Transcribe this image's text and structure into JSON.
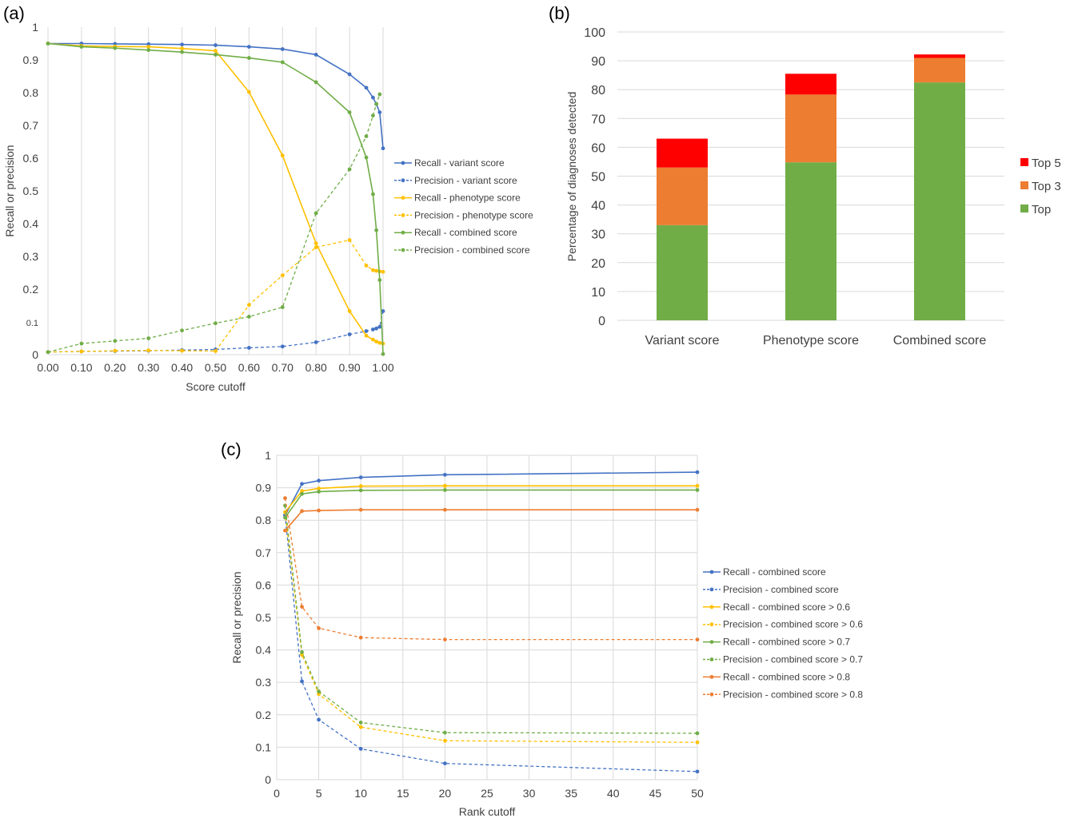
{
  "chart_data": [
    {
      "panel": "(a)",
      "type": "line",
      "xlabel": "Score cutoff",
      "ylabel": "Recall or precision",
      "xlim": [
        0,
        1
      ],
      "ylim": [
        0,
        1
      ],
      "x_ticks": [
        "0.00",
        "0.10",
        "0.20",
        "0.30",
        "0.40",
        "0.50",
        "0.60",
        "0.70",
        "0.80",
        "0.90",
        "1.00"
      ],
      "y_ticks": [
        "0",
        "0.1",
        "0.2",
        "0.3",
        "0.4",
        "0.5",
        "0.6",
        "0.7",
        "0.8",
        "0.9",
        "1"
      ],
      "legend_position": "right",
      "grid": "vertical",
      "series": [
        {
          "name": "Recall - variant score",
          "color": "#4472C4",
          "dashed": false,
          "x": [
            0,
            0.1,
            0.2,
            0.3,
            0.4,
            0.5,
            0.6,
            0.7,
            0.8,
            0.9,
            0.95,
            0.97,
            0.98,
            0.99,
            1.0
          ],
          "y": [
            0.95,
            0.95,
            0.949,
            0.948,
            0.947,
            0.945,
            0.94,
            0.933,
            0.916,
            0.856,
            0.815,
            0.785,
            0.765,
            0.74,
            0.63
          ]
        },
        {
          "name": "Precision - variant score",
          "color": "#4472C4",
          "dashed": true,
          "x": [
            0,
            0.1,
            0.2,
            0.3,
            0.4,
            0.5,
            0.6,
            0.7,
            0.8,
            0.9,
            0.95,
            0.97,
            0.98,
            0.99,
            1.0
          ],
          "y": [
            0.008,
            0.01,
            0.011,
            0.012,
            0.014,
            0.016,
            0.021,
            0.025,
            0.038,
            0.062,
            0.072,
            0.077,
            0.08,
            0.085,
            0.133
          ]
        },
        {
          "name": "Recall - phenotype score",
          "color": "#FFC000",
          "dashed": false,
          "x": [
            0,
            0.1,
            0.2,
            0.3,
            0.4,
            0.5,
            0.6,
            0.7,
            0.8,
            0.9,
            0.95,
            0.97,
            0.98,
            0.99,
            1.0
          ],
          "y": [
            0.95,
            0.943,
            0.941,
            0.94,
            0.935,
            0.928,
            0.802,
            0.608,
            0.34,
            0.133,
            0.058,
            0.046,
            0.04,
            0.036,
            0.034
          ]
        },
        {
          "name": "Precision - phenotype score",
          "color": "#FFC000",
          "dashed": true,
          "x": [
            0,
            0.1,
            0.2,
            0.3,
            0.4,
            0.5,
            0.6,
            0.7,
            0.8,
            0.9,
            0.95,
            0.97,
            0.98,
            0.99,
            1.0
          ],
          "y": [
            0.008,
            0.01,
            0.012,
            0.013,
            0.012,
            0.011,
            0.152,
            0.242,
            0.328,
            0.35,
            0.272,
            0.258,
            0.256,
            0.254,
            0.253
          ]
        },
        {
          "name": "Recall - combined score",
          "color": "#70AD47",
          "dashed": false,
          "x": [
            0,
            0.1,
            0.2,
            0.3,
            0.4,
            0.5,
            0.6,
            0.7,
            0.8,
            0.9,
            0.95,
            0.97,
            0.98,
            0.99,
            1.0
          ],
          "y": [
            0.95,
            0.94,
            0.936,
            0.93,
            0.924,
            0.916,
            0.906,
            0.893,
            0.832,
            0.74,
            0.602,
            0.49,
            0.38,
            0.228,
            0.002
          ]
        },
        {
          "name": "Precision - combined score",
          "color": "#70AD47",
          "dashed": true,
          "x": [
            0,
            0.1,
            0.2,
            0.3,
            0.4,
            0.5,
            0.6,
            0.7,
            0.8,
            0.9,
            0.95,
            0.97,
            0.98,
            0.99
          ],
          "y": [
            0.008,
            0.034,
            0.042,
            0.05,
            0.074,
            0.096,
            0.116,
            0.145,
            0.432,
            0.566,
            0.667,
            0.73,
            0.765,
            0.795
          ]
        }
      ]
    },
    {
      "panel": "(b)",
      "type": "bar",
      "stacked": true,
      "ylabel": "Percentage of diagnoses detected",
      "ylim": [
        0,
        100
      ],
      "y_ticks": [
        "0",
        "10",
        "20",
        "30",
        "40",
        "50",
        "60",
        "70",
        "80",
        "90",
        "100"
      ],
      "categories": [
        "Variant score",
        "Phenotype score",
        "Combined score"
      ],
      "legend_position": "right",
      "grid": "horizontal",
      "series": [
        {
          "name": "Top",
          "color": "#70AD47",
          "values": [
            33,
            54.8,
            82.5
          ]
        },
        {
          "name": "Top 3",
          "color": "#ED7D31",
          "values": [
            20,
            23.5,
            8.5
          ]
        },
        {
          "name": "Top 5",
          "color": "#FF0000",
          "values": [
            10,
            7.2,
            1.2
          ]
        }
      ],
      "legend_order": [
        "Top 5",
        "Top 3",
        "Top"
      ]
    },
    {
      "panel": "(c)",
      "type": "line",
      "xlabel": "Rank cutoff",
      "ylabel": "Recall or precision",
      "xlim": [
        0,
        50
      ],
      "ylim": [
        0,
        1
      ],
      "x_ticks": [
        "0",
        "5",
        "10",
        "15",
        "20",
        "25",
        "30",
        "35",
        "40",
        "45",
        "50"
      ],
      "y_ticks": [
        "0",
        "0.1",
        "0.2",
        "0.3",
        "0.4",
        "0.5",
        "0.6",
        "0.7",
        "0.8",
        "0.9",
        "1"
      ],
      "legend_position": "right",
      "grid": "both",
      "series": [
        {
          "name": "Recall - combined score",
          "color": "#4472C4",
          "dashed": false,
          "x": [
            1,
            3,
            5,
            10,
            20,
            50
          ],
          "y": [
            0.815,
            0.912,
            0.922,
            0.932,
            0.94,
            0.948
          ]
        },
        {
          "name": "Precision - combined score",
          "color": "#4472C4",
          "dashed": true,
          "x": [
            1,
            3,
            5,
            10,
            20,
            50
          ],
          "y": [
            0.815,
            0.303,
            0.185,
            0.095,
            0.05,
            0.025
          ]
        },
        {
          "name": "Recall - combined score > 0.6",
          "color": "#FFC000",
          "dashed": false,
          "x": [
            1,
            3,
            5,
            10,
            20,
            50
          ],
          "y": [
            0.825,
            0.89,
            0.898,
            0.905,
            0.906,
            0.906
          ]
        },
        {
          "name": "Precision - combined score > 0.6",
          "color": "#FFC000",
          "dashed": true,
          "x": [
            1,
            3,
            5,
            10,
            20,
            50
          ],
          "y": [
            0.825,
            0.385,
            0.264,
            0.162,
            0.12,
            0.115
          ]
        },
        {
          "name": "Recall - combined score > 0.7",
          "color": "#70AD47",
          "dashed": false,
          "x": [
            1,
            3,
            5,
            10,
            20,
            50
          ],
          "y": [
            0.808,
            0.881,
            0.888,
            0.892,
            0.893,
            0.893
          ]
        },
        {
          "name": "Precision - combined score > 0.7",
          "color": "#70AD47",
          "dashed": true,
          "x": [
            1,
            3,
            5,
            10,
            20,
            50
          ],
          "y": [
            0.845,
            0.393,
            0.272,
            0.176,
            0.145,
            0.143
          ]
        },
        {
          "name": "Recall - combined score > 0.8",
          "color": "#ED7D31",
          "dashed": false,
          "x": [
            1,
            3,
            5,
            10,
            20,
            50
          ],
          "y": [
            0.768,
            0.828,
            0.83,
            0.832,
            0.832,
            0.832
          ]
        },
        {
          "name": "Precision - combined score > 0.8",
          "color": "#ED7D31",
          "dashed": true,
          "x": [
            1,
            3,
            5,
            10,
            20,
            50
          ],
          "y": [
            0.868,
            0.533,
            0.467,
            0.438,
            0.432,
            0.432
          ]
        }
      ]
    }
  ]
}
